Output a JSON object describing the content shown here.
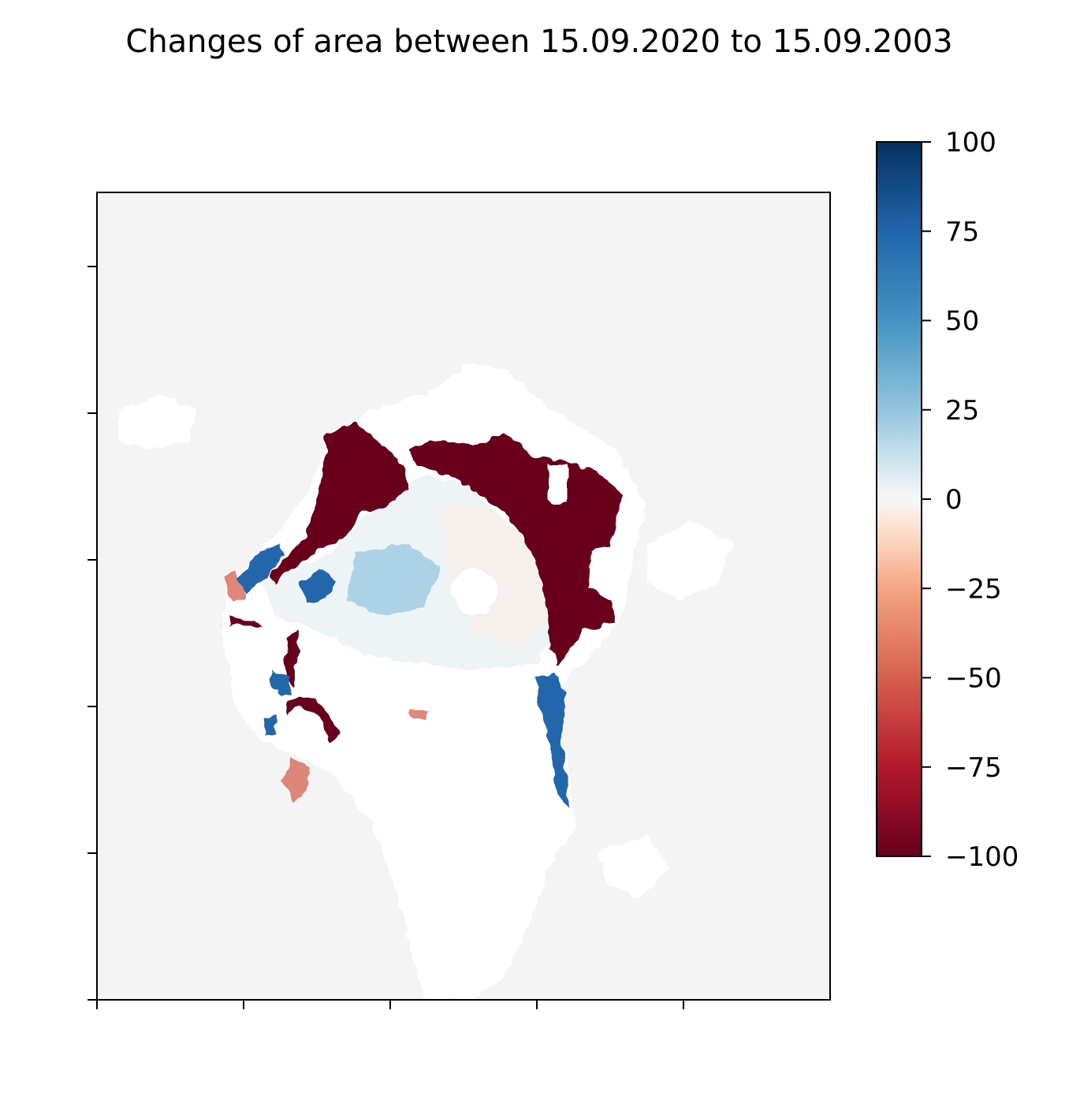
{
  "chart_data": {
    "type": "heatmap",
    "title": "Changes of area between 15.09.2020 to 15.09.2003",
    "xlabel": "",
    "ylabel": "",
    "x_tick_count": 5,
    "y_tick_count": 6,
    "x_ticks_labeled": false,
    "y_ticks_labeled": false,
    "colormap": "RdBu",
    "colorbar": {
      "vmin": -100,
      "vmax": 100,
      "ticks": [
        100,
        75,
        50,
        25,
        0,
        -25,
        -50,
        -75,
        -100
      ],
      "tick_labels": [
        "100",
        "75",
        "50",
        "25",
        "0",
        "−25",
        "−50",
        "−75",
        "−100"
      ],
      "stops": [
        {
          "v": -100,
          "color": "#67001f"
        },
        {
          "v": -75,
          "color": "#b2182b"
        },
        {
          "v": -50,
          "color": "#d6604d"
        },
        {
          "v": -25,
          "color": "#f4a582"
        },
        {
          "v": -10,
          "color": "#fddbc7"
        },
        {
          "v": 0,
          "color": "#f7f7f7"
        },
        {
          "v": 10,
          "color": "#d1e5f0"
        },
        {
          "v": 25,
          "color": "#92c5de"
        },
        {
          "v": 50,
          "color": "#4393c3"
        },
        {
          "v": 75,
          "color": "#2166ac"
        },
        {
          "v": 100,
          "color": "#053061"
        }
      ]
    },
    "regions": [
      {
        "name": "land",
        "color": "#f4f4f4"
      },
      {
        "name": "no-data",
        "color": "#ffffff"
      },
      {
        "name": "ice-loss",
        "value": -100
      },
      {
        "name": "ice-gain",
        "value": 90
      },
      {
        "name": "stable-ice",
        "value": 0
      }
    ]
  },
  "colors": {
    "land": "#f4f4f4",
    "nodata": "#ffffff",
    "frame": "#000000"
  }
}
